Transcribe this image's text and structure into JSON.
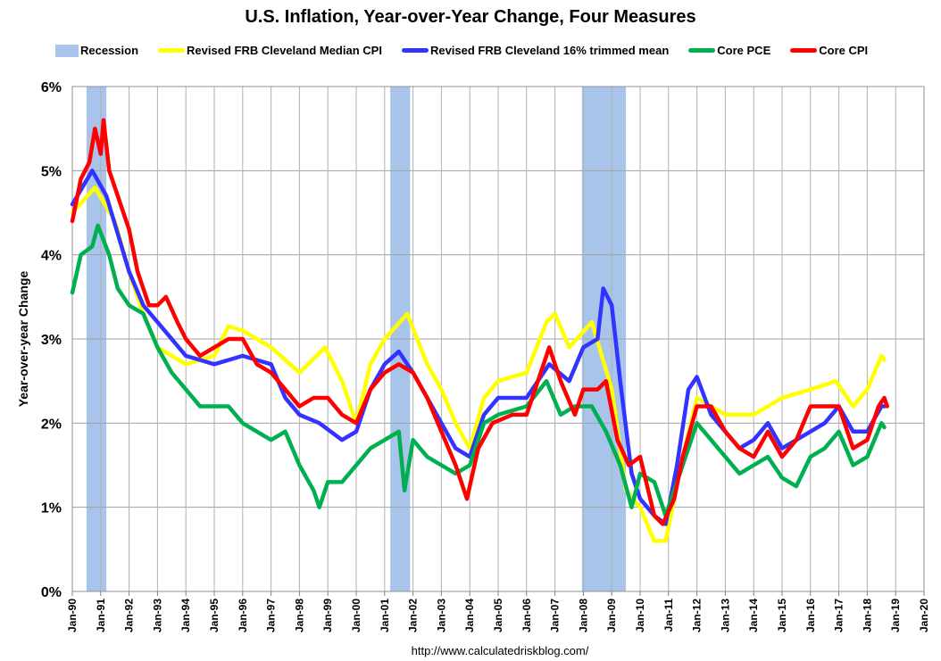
{
  "chart_data": {
    "type": "line",
    "title": "U.S. Inflation, Year-over-Year Change, Four Measures",
    "xlabel": "",
    "ylabel": "Year-over-year Change",
    "ylim": [
      0,
      6
    ],
    "xlim": [
      1990,
      2020
    ],
    "yticks": [
      "0%",
      "1%",
      "2%",
      "3%",
      "4%",
      "5%",
      "6%"
    ],
    "xticks": [
      "Jan-90",
      "Jan-91",
      "Jan-92",
      "Jan-93",
      "Jan-94",
      "Jan-95",
      "Jan-96",
      "Jan-97",
      "Jan-98",
      "Jan-99",
      "Jan-00",
      "Jan-01",
      "Jan-02",
      "Jan-03",
      "Jan-04",
      "Jan-05",
      "Jan-06",
      "Jan-07",
      "Jan-08",
      "Jan-09",
      "Jan-10",
      "Jan-11",
      "Jan-12",
      "Jan-13",
      "Jan-14",
      "Jan-15",
      "Jan-16",
      "Jan-17",
      "Jan-18",
      "Jan-19",
      "Jan-20"
    ],
    "grid": true,
    "legend_position": "top",
    "recessions": {
      "name": "Recession",
      "color": "#a9c4ea",
      "periods": [
        [
          1990.5,
          1991.2
        ],
        [
          2001.2,
          2001.9
        ],
        [
          2007.95,
          2009.5
        ]
      ]
    },
    "series": [
      {
        "name": "Revised FRB Cleveland Median CPI",
        "color": "#ffff00",
        "x": [
          1990,
          1990.8,
          1991.5,
          1992,
          1992.5,
          1993,
          1994,
          1995,
          1995.5,
          1996,
          1997,
          1998,
          1998.9,
          1999.5,
          2000,
          2000.5,
          2001,
          2001.8,
          2002.5,
          2003,
          2003.5,
          2004,
          2004.5,
          2005,
          2006,
          2006.7,
          2007,
          2007.5,
          2008.3,
          2009,
          2009.5,
          2010,
          2010.5,
          2010.9,
          2011.5,
          2012,
          2013,
          2014,
          2015,
          2016,
          2016.9,
          2017.5,
          2018,
          2018.5,
          2018.6
        ],
        "values": [
          4.5,
          4.8,
          4.4,
          3.8,
          3.3,
          2.9,
          2.7,
          2.8,
          3.15,
          3.1,
          2.9,
          2.6,
          2.9,
          2.5,
          2.0,
          2.7,
          3.0,
          3.3,
          2.7,
          2.4,
          2.0,
          1.7,
          2.3,
          2.5,
          2.6,
          3.2,
          3.3,
          2.9,
          3.2,
          2.4,
          1.2,
          1.0,
          0.6,
          0.6,
          1.6,
          2.3,
          2.1,
          2.1,
          2.3,
          2.4,
          2.5,
          2.2,
          2.4,
          2.8,
          2.75
        ]
      },
      {
        "name": "Revised FRB Cleveland 16% trimmed mean",
        "color": "#3333ff",
        "x": [
          1990,
          1990.7,
          1991.2,
          1992,
          1992.5,
          1993,
          1993.5,
          1994,
          1995,
          1996,
          1997,
          1997.5,
          1998,
          1998.7,
          1999.5,
          2000,
          2000.5,
          2001,
          2001.5,
          2002,
          2002.5,
          2003,
          2003.5,
          2004,
          2004.5,
          2005,
          2006,
          2006.8,
          2007.5,
          2008,
          2008.5,
          2008.7,
          2009,
          2009.3,
          2009.7,
          2010,
          2010.5,
          2010.9,
          2011.3,
          2011.7,
          2012,
          2012.5,
          2013,
          2013.5,
          2014,
          2014.5,
          2015,
          2015.5,
          2016,
          2016.5,
          2017,
          2017.5,
          2018,
          2018.5,
          2018.6
        ],
        "values": [
          4.6,
          5.0,
          4.7,
          3.8,
          3.4,
          3.2,
          3.0,
          2.8,
          2.7,
          2.8,
          2.7,
          2.3,
          2.1,
          2.0,
          1.8,
          1.9,
          2.4,
          2.7,
          2.85,
          2.6,
          2.3,
          2.0,
          1.7,
          1.6,
          2.1,
          2.3,
          2.3,
          2.7,
          2.5,
          2.9,
          3.0,
          3.6,
          3.4,
          2.5,
          1.4,
          1.1,
          0.9,
          0.8,
          1.5,
          2.4,
          2.55,
          2.1,
          1.9,
          1.7,
          1.8,
          2.0,
          1.7,
          1.8,
          1.9,
          2.0,
          2.2,
          1.9,
          1.9,
          2.2,
          2.2
        ]
      },
      {
        "name": "Core PCE",
        "color": "#00b050",
        "x": [
          1990,
          1990.3,
          1990.7,
          1990.9,
          1991.3,
          1991.6,
          1992,
          1992.5,
          1993,
          1993.5,
          1994,
          1994.5,
          1995,
          1995.5,
          1996,
          1996.5,
          1997,
          1997.5,
          1998,
          1998.5,
          1998.7,
          1999,
          1999.5,
          2000,
          2000.5,
          2001,
          2001.5,
          2001.7,
          2002,
          2002.5,
          2003,
          2003.5,
          2004,
          2004.5,
          2005,
          2006,
          2006.7,
          2007.2,
          2007.7,
          2008.3,
          2008.8,
          2009.3,
          2009.7,
          2010,
          2010.5,
          2010.9,
          2011.5,
          2012,
          2012.5,
          2013,
          2013.5,
          2014,
          2014.5,
          2015,
          2015.5,
          2016,
          2016.5,
          2017,
          2017.5,
          2018,
          2018.5,
          2018.6
        ],
        "values": [
          3.55,
          4.0,
          4.1,
          4.35,
          4.0,
          3.6,
          3.4,
          3.3,
          2.9,
          2.6,
          2.4,
          2.2,
          2.2,
          2.2,
          2.0,
          1.9,
          1.8,
          1.9,
          1.5,
          1.2,
          1.0,
          1.3,
          1.3,
          1.5,
          1.7,
          1.8,
          1.9,
          1.2,
          1.8,
          1.6,
          1.5,
          1.4,
          1.5,
          2.0,
          2.1,
          2.2,
          2.5,
          2.1,
          2.2,
          2.2,
          1.9,
          1.5,
          1.0,
          1.4,
          1.3,
          0.9,
          1.5,
          2.0,
          1.8,
          1.6,
          1.4,
          1.5,
          1.6,
          1.35,
          1.25,
          1.6,
          1.7,
          1.9,
          1.5,
          1.6,
          2.0,
          1.95
        ]
      },
      {
        "name": "Core CPI",
        "color": "#ff0000",
        "x": [
          1990,
          1990.3,
          1990.6,
          1990.8,
          1991,
          1991.1,
          1991.3,
          1991.6,
          1992,
          1992.3,
          1992.7,
          1993,
          1993.3,
          1993.7,
          1994,
          1994.5,
          1995,
          1995.5,
          1996,
          1996.5,
          1997,
          1997.5,
          1998,
          1998.5,
          1999,
          1999.5,
          2000,
          2000.5,
          2001,
          2001.5,
          2002,
          2002.5,
          2003,
          2003.5,
          2003.9,
          2004.3,
          2004.8,
          2005.5,
          2006,
          2006.5,
          2006.8,
          2007.2,
          2007.7,
          2008,
          2008.5,
          2008.8,
          2009.2,
          2009.6,
          2010,
          2010.5,
          2010.8,
          2011.2,
          2011.5,
          2012,
          2012.5,
          2013,
          2013.5,
          2014,
          2014.5,
          2015,
          2015.5,
          2016,
          2016.5,
          2017,
          2017.5,
          2018,
          2018.4,
          2018.6,
          2018.7
        ],
        "values": [
          4.4,
          4.9,
          5.1,
          5.5,
          5.2,
          5.6,
          5.0,
          4.7,
          4.3,
          3.8,
          3.4,
          3.4,
          3.5,
          3.2,
          3.0,
          2.8,
          2.9,
          3.0,
          3.0,
          2.7,
          2.6,
          2.4,
          2.2,
          2.3,
          2.3,
          2.1,
          2.0,
          2.4,
          2.6,
          2.7,
          2.6,
          2.3,
          1.9,
          1.5,
          1.1,
          1.7,
          2.0,
          2.1,
          2.1,
          2.6,
          2.9,
          2.5,
          2.1,
          2.4,
          2.4,
          2.5,
          1.8,
          1.5,
          1.6,
          0.9,
          0.8,
          1.1,
          1.6,
          2.2,
          2.2,
          1.9,
          1.7,
          1.6,
          1.9,
          1.6,
          1.8,
          2.2,
          2.2,
          2.2,
          1.7,
          1.8,
          2.2,
          2.3,
          2.2
        ]
      }
    ],
    "source": "http://www.calculatedriskblog.com/"
  }
}
